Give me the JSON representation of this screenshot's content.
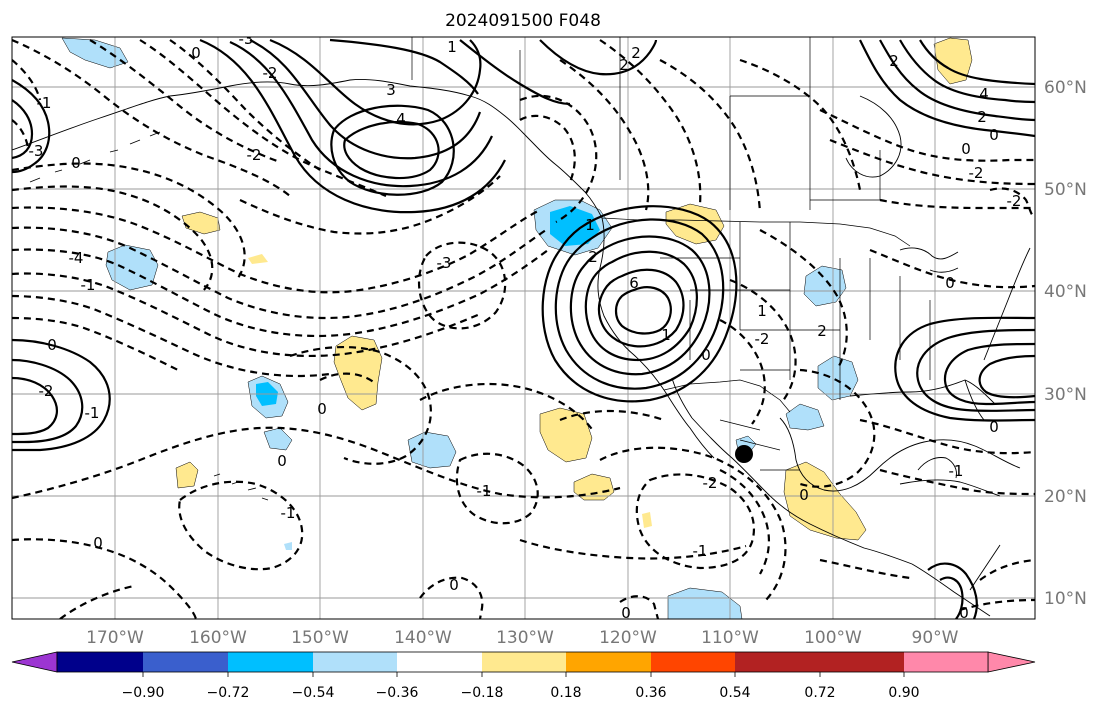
{
  "title": "2024091500 F048",
  "map": {
    "lon_ticks": [
      {
        "label": "170°W"
      },
      {
        "label": "160°W"
      },
      {
        "label": "150°W"
      },
      {
        "label": "140°W"
      },
      {
        "label": "130°W"
      },
      {
        "label": "120°W"
      },
      {
        "label": "110°W"
      },
      {
        "label": "100°W"
      },
      {
        "label": "90°W"
      }
    ],
    "lat_ticks": [
      {
        "label": "60°N"
      },
      {
        "label": "50°N"
      },
      {
        "label": "40°N"
      },
      {
        "label": "30°N"
      },
      {
        "label": "20°N"
      },
      {
        "label": "10°N"
      }
    ]
  },
  "contour_labels": [
    "1",
    "2",
    "3",
    "4",
    "6",
    "2",
    "0",
    "-2",
    "-3",
    "-4",
    "-1",
    "0",
    "-1",
    "-2",
    "0",
    "-1",
    "-2",
    "1",
    "2",
    "-2",
    "-2",
    "0",
    "-1",
    "0",
    "4",
    "2",
    "0",
    "0",
    "0",
    "-1",
    "0",
    "-2",
    "0",
    "1",
    "-3",
    "-2",
    "-1",
    "0",
    "-1",
    "0",
    "0",
    "1",
    "2",
    "2",
    "0",
    "-3",
    "0"
  ],
  "colorbar": {
    "colors": [
      "#9c35d2",
      "#00008b",
      "#3a5fcd",
      "#00bfff",
      "#b0e0fa",
      "#ffffff",
      "#ffe98f",
      "#ffa500",
      "#ff4500",
      "#b22222",
      "#ff88aa"
    ],
    "tick_labels": [
      "−0.90",
      "−0.72",
      "−0.54",
      "−0.36",
      "−0.18",
      "0.18",
      "0.36",
      "0.54",
      "0.72",
      "0.90"
    ]
  },
  "colors": {
    "light_blue": "#b0e0fa",
    "mid_blue": "#00bfff",
    "yellow": "#ffe98f",
    "grid": "#9a9a9a"
  }
}
